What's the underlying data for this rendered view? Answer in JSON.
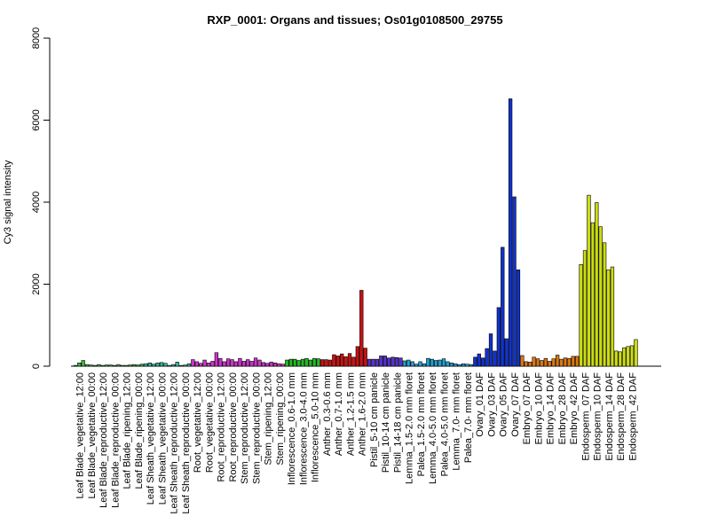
{
  "chart_data": {
    "type": "bar",
    "title": "RXP_0001: Organs and tissues; Os01g0108500_29755",
    "xlabel": "",
    "ylabel": "Cy3 signal intensity",
    "ylim": [
      0,
      8000
    ],
    "yticks": [
      0,
      2000,
      4000,
      6000,
      8000
    ],
    "grid": false,
    "legend": "none",
    "categories": [
      "Leaf Blade_vegetative_12:00",
      "Leaf Blade_vegetative_00:00",
      "Leaf Blade_reproductive_12:00",
      "Leaf Blade_reproductive_00:00",
      "Leaf Blade_ripening_12:00",
      "Leaf Blade_ripening_00:00",
      "Leaf Sheath_vegetative_12:00",
      "Leaf Sheath_vegetative_00:00",
      "Leaf Sheath_reproductive_12:00",
      "Leaf Sheath_reproductive_00:00",
      "Root_vegetative_12:00",
      "Root_vegetative_00:00",
      "Root_reproductive_12:00",
      "Root_reproductive_00:00",
      "Stem_reproductive_12:00",
      "Stem_reproductive_00:00",
      "Stem_ripening_12:00",
      "Stem_ripening_00:00",
      "Inflorescence_0.6-1.0 mm",
      "Inflorescence_3.0-4.0 mm",
      "Inflorescence_5.0-10 mm",
      "Anther_0.3-0.6 mm",
      "Anther_0.7-1.0 mm",
      "Anther_1.2-1.5 mm",
      "Anther_1.6-2.0 mm",
      "Pistil_5-10 cm panicle",
      "Pistil_10-14 cm panicle",
      "Pistil_14-18 cm panicle",
      "Lemma_1.5-2.0 mm floret",
      "Palea_1.5-2.0 mm floret",
      "Lemma_4.0-5.0 mm floret",
      "Palea_4.0-5.0 mm floret",
      "Lemma_7.0- mm floret",
      "Palea_7.0- mm floret",
      "Ovary_01 DAF",
      "Ovary_03 DAF",
      "Ovary_05 DAF",
      "Ovary_07 DAF",
      "Embryo_07 DAF",
      "Embryo_10 DAF",
      "Embryo_14 DAF",
      "Embryo_28 DAF",
      "Embryo_42 DAF",
      "Endosperm_07 DAF",
      "Endosperm_10 DAF",
      "Endosperm_14 DAF",
      "Endosperm_28 DAF",
      "Endosperm_42 DAF"
    ],
    "groups": [
      {
        "color": "#3CB93C",
        "values": [
          20,
          80,
          140
        ]
      },
      {
        "color": "#3CB93C",
        "values": [
          40,
          30,
          20
        ]
      },
      {
        "color": "#3CB93C",
        "values": [
          40,
          20,
          30
        ]
      },
      {
        "color": "#3CB93C",
        "values": [
          30,
          20,
          40
        ]
      },
      {
        "color": "#3CB93C",
        "values": [
          20,
          20,
          30
        ]
      },
      {
        "color": "#3CB93C",
        "values": [
          40,
          30,
          50
        ]
      },
      {
        "color": "#2FB89A",
        "values": [
          60,
          80,
          50
        ]
      },
      {
        "color": "#2FB89A",
        "values": [
          80,
          90,
          70
        ]
      },
      {
        "color": "#2FB89A",
        "values": [
          20,
          40,
          100
        ]
      },
      {
        "color": "#2FB89A",
        "values": [
          20,
          30,
          60
        ]
      },
      {
        "color": "#CC33CC",
        "values": [
          160,
          110,
          70
        ]
      },
      {
        "color": "#CC33CC",
        "values": [
          150,
          80,
          120
        ]
      },
      {
        "color": "#CC33CC",
        "values": [
          330,
          190,
          110
        ]
      },
      {
        "color": "#CC33CC",
        "values": [
          180,
          160,
          110
        ]
      },
      {
        "color": "#CC33CC",
        "values": [
          190,
          120,
          160
        ]
      },
      {
        "color": "#CC33CC",
        "values": [
          120,
          200,
          150
        ]
      },
      {
        "color": "#CC33CC",
        "values": [
          90,
          70,
          100
        ]
      },
      {
        "color": "#CC33CC",
        "values": [
          80,
          60,
          50
        ]
      },
      {
        "color": "#22BB22",
        "values": [
          150,
          170,
          170
        ]
      },
      {
        "color": "#22BB22",
        "values": [
          140,
          170,
          190
        ]
      },
      {
        "color": "#22BB22",
        "values": [
          150,
          190,
          180
        ]
      },
      {
        "color": "#CC1111",
        "values": [
          160,
          160,
          150
        ]
      },
      {
        "color": "#CC1111",
        "values": [
          280,
          250,
          300
        ]
      },
      {
        "color": "#CC1111",
        "values": [
          230,
          310,
          220
        ]
      },
      {
        "color": "#CC1111",
        "values": [
          480,
          1850,
          440
        ]
      },
      {
        "color": "#5533CC",
        "values": [
          170,
          170,
          170
        ]
      },
      {
        "color": "#5533CC",
        "values": [
          250,
          250,
          200
        ]
      },
      {
        "color": "#5533CC",
        "values": [
          220,
          210,
          200
        ]
      },
      {
        "color": "#1FA0D0",
        "values": [
          130,
          150,
          110
        ]
      },
      {
        "color": "#1FA0D0",
        "values": [
          50,
          110,
          60
        ]
      },
      {
        "color": "#1FA0D0",
        "values": [
          190,
          170,
          140
        ]
      },
      {
        "color": "#1FA0D0",
        "values": [
          150,
          180,
          110
        ]
      },
      {
        "color": "#1FA0D0",
        "values": [
          80,
          60,
          40
        ]
      },
      {
        "color": "#1FA0D0",
        "values": [
          60,
          50,
          40
        ]
      },
      {
        "color": "#1133CC",
        "values": [
          220,
          300,
          200
        ]
      },
      {
        "color": "#1133CC",
        "values": [
          430,
          790,
          370
        ]
      },
      {
        "color": "#1133CC",
        "values": [
          1430,
          2900,
          670
        ]
      },
      {
        "color": "#1133CC",
        "values": [
          6520,
          4130,
          2350
        ]
      },
      {
        "color": "#DD7711",
        "values": [
          260,
          110,
          100
        ]
      },
      {
        "color": "#DD7711",
        "values": [
          220,
          180,
          140
        ]
      },
      {
        "color": "#DD7711",
        "values": [
          190,
          120,
          180
        ]
      },
      {
        "color": "#DD7711",
        "values": [
          270,
          170,
          200
        ]
      },
      {
        "color": "#DD7711",
        "values": [
          190,
          240,
          240
        ]
      },
      {
        "color": "#CCDD11",
        "values": [
          2480,
          2820,
          4170
        ]
      },
      {
        "color": "#CCDD11",
        "values": [
          3500,
          3990,
          3400
        ]
      },
      {
        "color": "#CCDD11",
        "values": [
          3010,
          2350,
          2420
        ]
      },
      {
        "color": "#CCDD11",
        "values": [
          370,
          350,
          450
        ]
      },
      {
        "color": "#CCDD11",
        "values": [
          480,
          500,
          650
        ]
      }
    ]
  }
}
